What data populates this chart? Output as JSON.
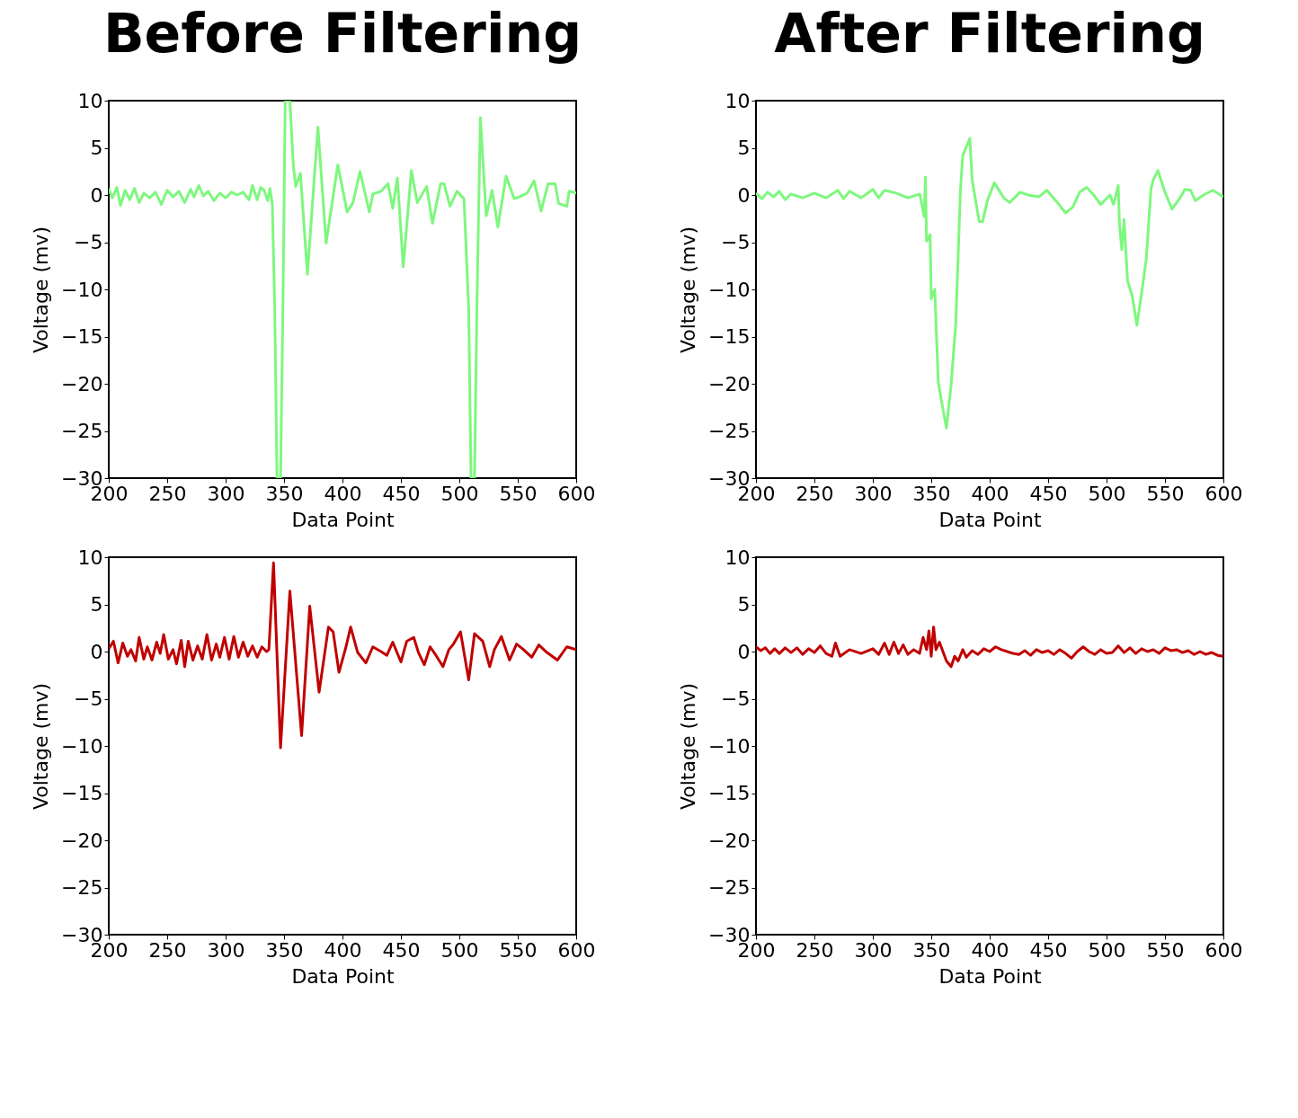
{
  "chart_data": [
    {
      "type": "line",
      "title": "Before Filtering",
      "xlabel": "Data Point",
      "ylabel": "Voltage (mv)",
      "xlim": [
        200,
        600
      ],
      "ylim": [
        -30,
        10
      ],
      "xticks": [
        200,
        250,
        300,
        350,
        400,
        450,
        500,
        550,
        600
      ],
      "yticks": [
        -30,
        -25,
        -20,
        -15,
        -10,
        -5,
        0,
        5,
        10
      ],
      "series": [
        {
          "color": "#7ef77e",
          "x": [
            200,
            203,
            207,
            210,
            214,
            218,
            222,
            226,
            230,
            235,
            240,
            245,
            250,
            255,
            260,
            265,
            270,
            273,
            277,
            281,
            285,
            290,
            295,
            300,
            305,
            310,
            315,
            320,
            323,
            327,
            330,
            333,
            336,
            338,
            340,
            342,
            344,
            347,
            349,
            351,
            355,
            358,
            360,
            364,
            370,
            379,
            386,
            396,
            404,
            409,
            415,
            423,
            426,
            433,
            439,
            443,
            447,
            452,
            459,
            464,
            472,
            477,
            484,
            487,
            492,
            498,
            504,
            508,
            510,
            513,
            515,
            518,
            523,
            528,
            533,
            540,
            547,
            553,
            558,
            564,
            570,
            576,
            582,
            585,
            592,
            594,
            600
          ],
          "values": [
            0.7,
            -0.3,
            0.8,
            -1.1,
            0.5,
            -0.5,
            0.7,
            -0.8,
            0.2,
            -0.3,
            0.3,
            -1.0,
            0.5,
            -0.2,
            0.4,
            -0.8,
            0.6,
            -0.2,
            1.0,
            -0.1,
            0.4,
            -0.6,
            0.2,
            -0.3,
            0.3,
            0.0,
            0.3,
            -0.5,
            1.0,
            -0.5,
            0.8,
            0.5,
            -0.6,
            0.7,
            -1.0,
            -12,
            -30,
            -30,
            -12,
            10,
            10,
            3,
            0.9,
            2.3,
            -8.4,
            7.2,
            -5.1,
            3.2,
            -1.8,
            -0.8,
            2.5,
            -1.8,
            0.1,
            0.4,
            1.2,
            -1.4,
            1.8,
            -7.6,
            2.6,
            -0.8,
            0.9,
            -3.0,
            1.2,
            1.2,
            -1.2,
            0.4,
            -0.4,
            -12,
            -30,
            -30,
            -12,
            8.2,
            -2.2,
            0.5,
            -3.4,
            2.0,
            -0.4,
            -0.1,
            0.2,
            1.5,
            -1.7,
            1.2,
            1.2,
            -0.9,
            -1.2,
            0.4,
            0.2
          ]
        }
      ]
    },
    {
      "type": "line",
      "title": "After Filtering",
      "xlabel": "Data Point",
      "ylabel": "Voltage (mv)",
      "xlim": [
        200,
        600
      ],
      "ylim": [
        -30,
        10
      ],
      "xticks": [
        200,
        250,
        300,
        350,
        400,
        450,
        500,
        550,
        600
      ],
      "yticks": [
        -30,
        -25,
        -20,
        -15,
        -10,
        -5,
        0,
        5,
        10
      ],
      "series": [
        {
          "color": "#7ef77e",
          "x": [
            200,
            205,
            210,
            215,
            220,
            225,
            230,
            240,
            250,
            260,
            270,
            275,
            280,
            290,
            300,
            305,
            310,
            320,
            330,
            340,
            341,
            344,
            345,
            346,
            349,
            350,
            353,
            356,
            359,
            363,
            367,
            371,
            375,
            377,
            383,
            385,
            391,
            394,
            398,
            404,
            412,
            417,
            426,
            433,
            442,
            449,
            458,
            465,
            471,
            477,
            483,
            489,
            495,
            503,
            506,
            510,
            511,
            513,
            515,
            518,
            522,
            526,
            530,
            534,
            538,
            540,
            544,
            550,
            556,
            563,
            567,
            572,
            576,
            583,
            591,
            600
          ],
          "values": [
            0.2,
            -0.4,
            0.3,
            -0.2,
            0.4,
            -0.5,
            0.1,
            -0.3,
            0.2,
            -0.3,
            0.5,
            -0.4,
            0.4,
            -0.3,
            0.6,
            -0.3,
            0.5,
            0.2,
            -0.3,
            0.1,
            -0.4,
            -2.3,
            1.9,
            -4.9,
            -4.2,
            -11,
            -10,
            -19.8,
            -22,
            -24.7,
            -20.1,
            -13.6,
            0.6,
            4.2,
            6.0,
            1.6,
            -2.8,
            -2.8,
            -0.6,
            1.3,
            -0.3,
            -0.8,
            0.3,
            0,
            -0.2,
            0.5,
            -0.8,
            -1.9,
            -1.3,
            0.3,
            0.8,
            0,
            -1,
            0,
            -1,
            1,
            -2.9,
            -5.8,
            -2.6,
            -9.1,
            -10.7,
            -13.8,
            -10.4,
            -6.8,
            0.6,
            1.6,
            2.6,
            0.3,
            -1.5,
            -0.3,
            0.6,
            0.5,
            -0.6,
            0,
            0.5,
            -0.2
          ]
        }
      ]
    },
    {
      "type": "line",
      "xlabel": "Data Point",
      "ylabel": "Voltage (mv)",
      "xlim": [
        200,
        600
      ],
      "ylim": [
        -30,
        10
      ],
      "xticks": [
        200,
        250,
        300,
        350,
        400,
        450,
        500,
        550,
        600
      ],
      "yticks": [
        -30,
        -25,
        -20,
        -15,
        -10,
        -5,
        0,
        5,
        10
      ],
      "series": [
        {
          "color": "#c00000",
          "x": [
            200,
            204,
            208,
            212,
            216,
            219,
            223,
            226,
            230,
            233,
            237,
            241,
            244,
            247,
            251,
            255,
            258,
            262,
            265,
            268,
            272,
            276,
            280,
            284,
            288,
            292,
            295,
            299,
            303,
            307,
            311,
            315,
            319,
            323,
            327,
            331,
            335,
            337,
            341,
            347,
            355,
            365,
            372,
            380,
            388,
            392,
            397,
            403,
            407,
            413,
            420,
            426,
            433,
            438,
            443,
            450,
            455,
            461,
            465,
            470,
            475,
            480,
            486,
            491,
            495,
            501,
            508,
            513,
            520,
            526,
            530,
            536,
            543,
            549,
            555,
            562,
            568,
            575,
            584,
            592,
            600
          ],
          "values": [
            0.3,
            1.1,
            -1.2,
            0.9,
            -0.5,
            0.2,
            -1.0,
            1.5,
            -0.8,
            0.5,
            -0.9,
            1.0,
            -0.2,
            1.8,
            -0.8,
            0.2,
            -1.3,
            1.2,
            -1.6,
            1.1,
            -0.9,
            0.6,
            -0.8,
            1.8,
            -0.9,
            0.8,
            -0.6,
            1.5,
            -0.8,
            1.6,
            -0.6,
            1.0,
            -0.5,
            0.6,
            -0.6,
            0.5,
            0.0,
            0.2,
            9.4,
            -10.2,
            6.4,
            -8.9,
            4.8,
            -4.3,
            2.6,
            2.1,
            -2.2,
            0.5,
            2.6,
            -0.1,
            -1.2,
            0.5,
            0,
            -0.4,
            1.0,
            -1.1,
            1.1,
            1.5,
            -0.1,
            -1.4,
            0.5,
            -0.4,
            -1.6,
            0.2,
            0.8,
            2.1,
            -3.0,
            1.9,
            1.1,
            -1.6,
            0.2,
            1.6,
            -0.9,
            0.8,
            0.2,
            -0.6,
            0.7,
            -0.1,
            -0.9,
            0.5,
            0.2
          ]
        }
      ]
    },
    {
      "type": "line",
      "xlabel": "Data Point",
      "ylabel": "Voltage (mv)",
      "xlim": [
        200,
        600
      ],
      "ylim": [
        -30,
        10
      ],
      "xticks": [
        200,
        250,
        300,
        350,
        400,
        450,
        500,
        550,
        600
      ],
      "yticks": [
        -30,
        -25,
        -20,
        -15,
        -10,
        -5,
        0,
        5,
        10
      ],
      "series": [
        {
          "color": "#c00000",
          "x": [
            200,
            204,
            208,
            212,
            216,
            220,
            225,
            230,
            235,
            240,
            245,
            250,
            255,
            260,
            265,
            268,
            272,
            280,
            290,
            300,
            305,
            310,
            314,
            318,
            322,
            326,
            330,
            335,
            340,
            343,
            346,
            348,
            350,
            352,
            354,
            357,
            360,
            363,
            367,
            370,
            373,
            377,
            380,
            385,
            390,
            395,
            400,
            405,
            410,
            415,
            420,
            425,
            430,
            435,
            440,
            445,
            450,
            455,
            460,
            465,
            470,
            475,
            480,
            485,
            490,
            495,
            500,
            505,
            510,
            515,
            520,
            525,
            530,
            535,
            540,
            545,
            550,
            555,
            560,
            565,
            570,
            575,
            580,
            585,
            590,
            595,
            600
          ],
          "values": [
            0.5,
            0.1,
            0.4,
            -0.2,
            0.3,
            -0.2,
            0.4,
            -0.1,
            0.4,
            -0.3,
            0.3,
            -0.1,
            0.6,
            -0.2,
            -0.5,
            0.9,
            -0.5,
            0.2,
            -0.2,
            0.3,
            -0.3,
            0.9,
            -0.3,
            1.0,
            -0.2,
            0.7,
            -0.3,
            0.2,
            -0.2,
            1.5,
            0.2,
            2.2,
            -0.5,
            2.6,
            0.2,
            1.0,
            0,
            -1.0,
            -1.6,
            -0.5,
            -1.0,
            0.2,
            -0.6,
            0.1,
            -0.3,
            0.3,
            0.0,
            0.5,
            0.2,
            0.0,
            -0.2,
            -0.3,
            0.1,
            -0.4,
            0.2,
            -0.1,
            0.1,
            -0.3,
            0.2,
            -0.2,
            -0.7,
            0.0,
            0.5,
            0.0,
            -0.3,
            0.2,
            -0.2,
            -0.1,
            0.6,
            -0.1,
            0.4,
            -0.2,
            0.3,
            0.0,
            0.2,
            -0.2,
            0.4,
            0.1,
            0.2,
            -0.1,
            0.1,
            -0.3,
            0.0,
            -0.3,
            -0.1,
            -0.4,
            -0.5
          ]
        }
      ]
    }
  ]
}
